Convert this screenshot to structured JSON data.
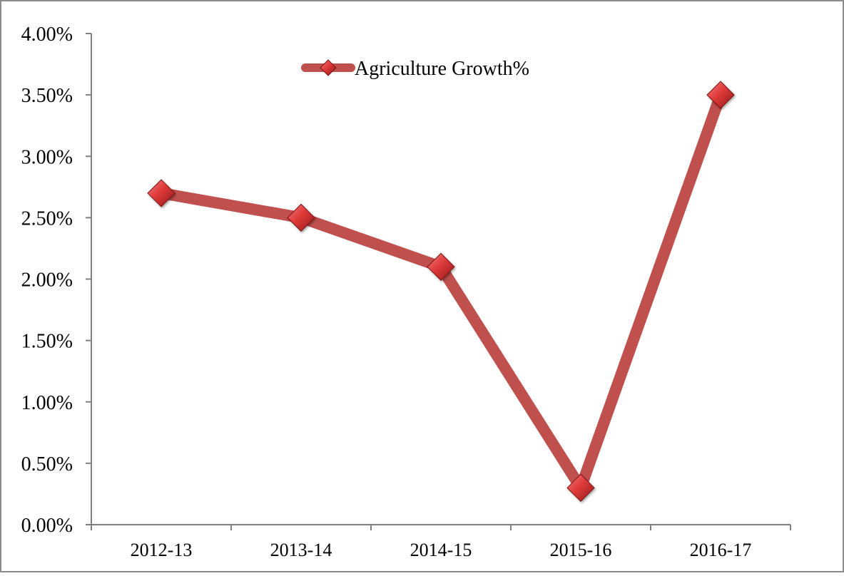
{
  "chart_data": {
    "type": "line",
    "categories": [
      "2012-13",
      "2013-14",
      "2014-15",
      "2015-16",
      "2016-17"
    ],
    "series": [
      {
        "name": "Agriculture Growth%",
        "values": [
          2.7,
          2.5,
          2.1,
          0.3,
          3.5
        ],
        "color": "#c0504d"
      }
    ],
    "title": "",
    "xlabel": "",
    "ylabel": "",
    "ylim": [
      0,
      4
    ],
    "ytick_values": [
      0,
      0.5,
      1,
      1.5,
      2,
      2.5,
      3,
      3.5,
      4
    ],
    "ytick_labels": [
      "0.00%",
      "0.50%",
      "1.00%",
      "1.50%",
      "2.00%",
      "2.50%",
      "3.00%",
      "3.50%",
      "4.00%"
    ],
    "grid": false,
    "legend": {
      "placement": "top-center",
      "entries": [
        "Agriculture Growth%"
      ]
    },
    "marker": "diamond",
    "border_color": "#808080",
    "axis_color": "#808080"
  }
}
